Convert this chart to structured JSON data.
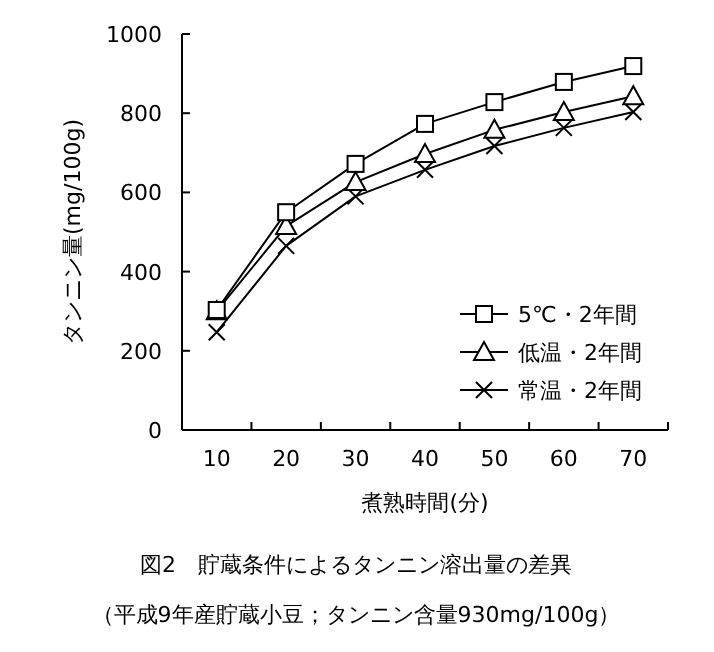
{
  "chart_data": {
    "type": "line",
    "title": "図2　貯蔵条件によるタンニン溶出量の差異",
    "subtitle": "（平成9年産貯蔵小豆；タンニン含量930mg/100g）",
    "xlabel": "煮熟時間(分)",
    "ylabel": "タンニン量(mg/100g)",
    "categories": [
      "10",
      "20",
      "30",
      "40",
      "50",
      "60",
      "70"
    ],
    "ylim": [
      0,
      1000
    ],
    "yticks": [
      0,
      200,
      400,
      600,
      800,
      1000
    ],
    "grid": false,
    "legend": "bottom right",
    "series": [
      {
        "name": "5℃・2年間",
        "color": "#000000",
        "marker": "square",
        "values": [
          303,
          550,
          672,
          773,
          828,
          879,
          919
        ]
      },
      {
        "name": "低温・2年間",
        "color": "#000000",
        "marker": "triangle",
        "values": [
          300,
          515,
          626,
          697,
          758,
          803,
          843
        ]
      },
      {
        "name": "常温・2年間",
        "color": "#000000",
        "marker": "cross",
        "values": [
          247,
          465,
          590,
          657,
          717,
          763,
          803
        ]
      }
    ]
  }
}
